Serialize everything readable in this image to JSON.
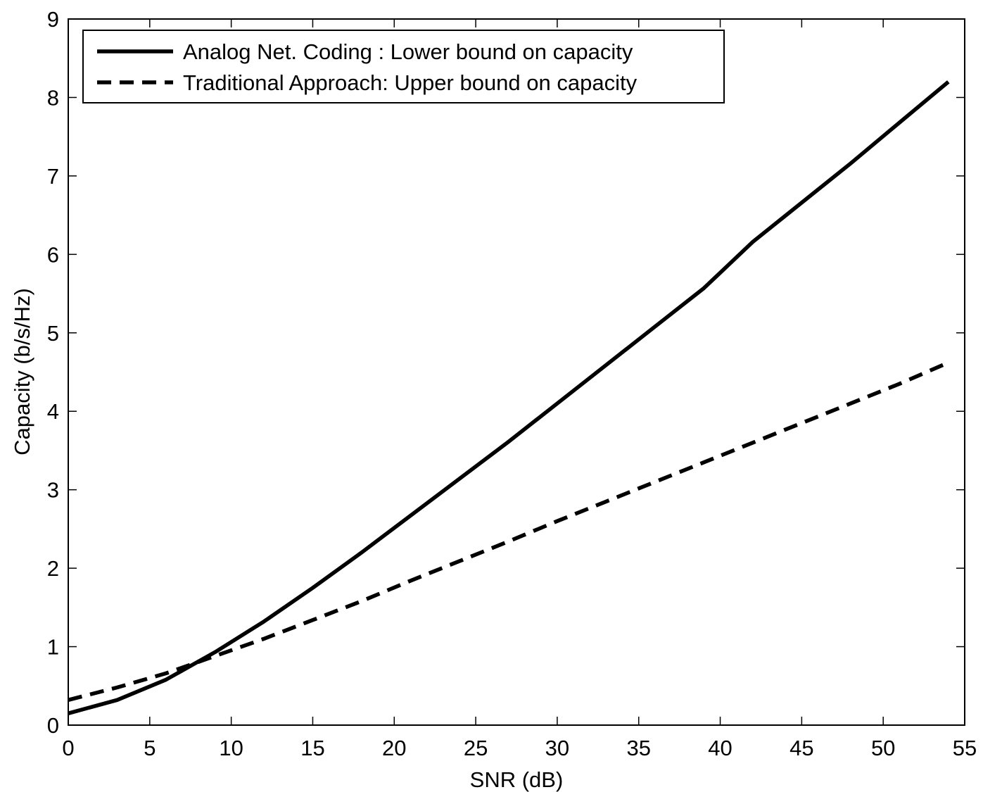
{
  "chart_data": {
    "type": "line",
    "xlabel": "SNR (dB)",
    "ylabel": "Capacity (b/s/Hz)",
    "xlim": [
      0,
      55
    ],
    "ylim": [
      0,
      9
    ],
    "xticks": [
      0,
      5,
      10,
      15,
      20,
      25,
      30,
      35,
      40,
      45,
      50,
      55
    ],
    "yticks": [
      0,
      1,
      2,
      3,
      4,
      5,
      6,
      7,
      8,
      9
    ],
    "grid": false,
    "legend_position": "top-left",
    "series": [
      {
        "name": "Analog Net. Coding : Lower bound on capacity",
        "style": "solid",
        "color": "#000000",
        "x": [
          0,
          3,
          6,
          9,
          12,
          15,
          18,
          21,
          24,
          27,
          30,
          33,
          36,
          39,
          42,
          45,
          48,
          51,
          54
        ],
        "y": [
          0.15,
          0.32,
          0.58,
          0.93,
          1.32,
          1.75,
          2.2,
          2.67,
          3.14,
          3.61,
          4.1,
          4.59,
          5.08,
          5.57,
          6.16,
          6.66,
          7.16,
          7.68,
          8.2
        ]
      },
      {
        "name": "Traditional Approach: Upper bound on capacity",
        "style": "dashed",
        "color": "#000000",
        "x": [
          0,
          3,
          6,
          9,
          12,
          15,
          18,
          21,
          24,
          27,
          30,
          33,
          36,
          39,
          42,
          45,
          48,
          51,
          54
        ],
        "y": [
          0.32,
          0.48,
          0.66,
          0.88,
          1.1,
          1.34,
          1.58,
          1.84,
          2.09,
          2.34,
          2.6,
          2.85,
          3.1,
          3.35,
          3.6,
          3.85,
          4.1,
          4.35,
          4.62
        ]
      }
    ]
  }
}
